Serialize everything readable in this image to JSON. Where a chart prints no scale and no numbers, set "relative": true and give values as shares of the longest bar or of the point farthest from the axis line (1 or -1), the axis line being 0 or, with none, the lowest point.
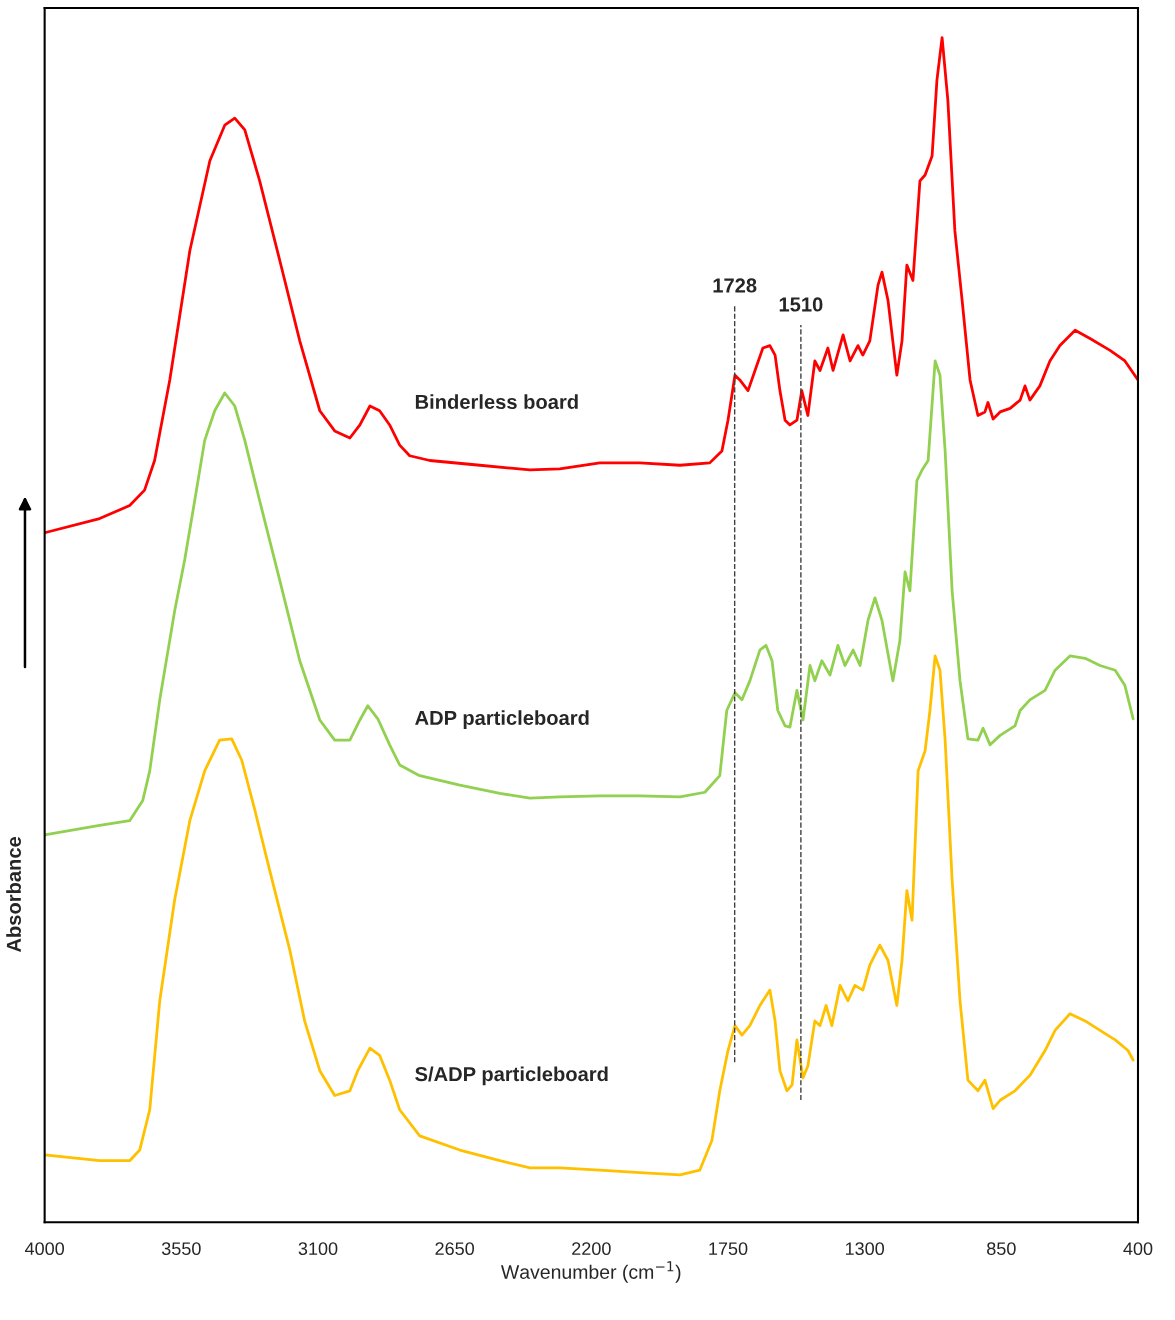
{
  "chart_data": {
    "type": "line",
    "relative": true,
    "xlabel": "Wavenumber (cm$^{−1}$)",
    "ylabel": "Absorbance",
    "xlim": [
      4000,
      400
    ],
    "xticks": [
      4000,
      3550,
      3100,
      2650,
      2200,
      1750,
      1300,
      850,
      400
    ],
    "tick_labels": "x",
    "grid": false,
    "legend": false,
    "line_style": "solid",
    "marker": "none",
    "ref_lines": [
      {
        "axis": "x",
        "value": 1728,
        "label": "1728",
        "line_style": "dashed",
        "color": "#404040"
      },
      {
        "axis": "x",
        "value": 1510,
        "label": "1510",
        "line_style": "dashed",
        "color": "#404040"
      }
    ],
    "series": [
      {
        "name": "Binderless board",
        "color": "#ff0000",
        "x": [
          4000,
          3819,
          3720,
          3671,
          3638,
          3588,
          3522,
          3456,
          3407,
          3374,
          3341,
          3292,
          3226,
          3160,
          3094,
          3045,
          2995,
          2962,
          2929,
          2897,
          2864,
          2831,
          2798,
          2732,
          2567,
          2402,
          2304,
          2172,
          2040,
          1908,
          1810,
          1770,
          1750,
          1727,
          1711,
          1684,
          1661,
          1635,
          1612,
          1595,
          1579,
          1562,
          1546,
          1523,
          1507,
          1487,
          1464,
          1447,
          1421,
          1404,
          1371,
          1348,
          1322,
          1306,
          1283,
          1256,
          1243,
          1223,
          1194,
          1177,
          1161,
          1141,
          1118,
          1101,
          1078,
          1062,
          1045,
          1026,
          1003,
          979,
          953,
          927,
          904,
          894,
          877,
          854,
          821,
          788,
          772,
          756,
          723,
          690,
          657,
          607,
          558,
          492,
          443,
          400
        ],
        "values": [
          0.582,
          0.594,
          0.605,
          0.618,
          0.643,
          0.711,
          0.82,
          0.896,
          0.926,
          0.932,
          0.922,
          0.879,
          0.812,
          0.744,
          0.685,
          0.668,
          0.662,
          0.673,
          0.689,
          0.685,
          0.673,
          0.656,
          0.647,
          0.643,
          0.639,
          0.635,
          0.636,
          0.641,
          0.641,
          0.639,
          0.641,
          0.651,
          0.677,
          0.715,
          0.711,
          0.702,
          0.719,
          0.738,
          0.74,
          0.732,
          0.702,
          0.677,
          0.673,
          0.677,
          0.702,
          0.681,
          0.727,
          0.719,
          0.738,
          0.719,
          0.749,
          0.727,
          0.74,
          0.732,
          0.744,
          0.791,
          0.802,
          0.778,
          0.715,
          0.744,
          0.808,
          0.795,
          0.879,
          0.884,
          0.9,
          0.964,
          1,
          0.947,
          0.837,
          0.778,
          0.711,
          0.681,
          0.684,
          0.692,
          0.678,
          0.684,
          0.687,
          0.694,
          0.706,
          0.694,
          0.706,
          0.727,
          0.74,
          0.753,
          0.746,
          0.736,
          0.727,
          0.711
        ]
      },
      {
        "name": "ADP particleboard",
        "color": "#92d050",
        "x": [
          4000,
          3819,
          3720,
          3677,
          3654,
          3621,
          3572,
          3539,
          3506,
          3473,
          3440,
          3407,
          3374,
          3341,
          3292,
          3226,
          3160,
          3094,
          3045,
          2995,
          2962,
          2936,
          2903,
          2864,
          2831,
          2765,
          2633,
          2501,
          2402,
          2304,
          2172,
          2040,
          1908,
          1826,
          1777,
          1754,
          1727,
          1704,
          1678,
          1645,
          1625,
          1605,
          1586,
          1562,
          1546,
          1523,
          1503,
          1480,
          1464,
          1441,
          1414,
          1388,
          1365,
          1338,
          1315,
          1289,
          1266,
          1243,
          1207,
          1184,
          1167,
          1151,
          1128,
          1111,
          1091,
          1068,
          1052,
          1035,
          1012,
          986,
          960,
          927,
          910,
          887,
          854,
          805,
          788,
          756,
          706,
          673,
          624,
          574,
          525,
          475,
          443,
          416
        ],
        "values": [
          0.327,
          0.335,
          0.339,
          0.356,
          0.381,
          0.441,
          0.516,
          0.559,
          0.609,
          0.66,
          0.685,
          0.7,
          0.689,
          0.66,
          0.609,
          0.542,
          0.474,
          0.424,
          0.407,
          0.407,
          0.424,
          0.436,
          0.425,
          0.403,
          0.386,
          0.377,
          0.369,
          0.362,
          0.358,
          0.359,
          0.36,
          0.36,
          0.359,
          0.363,
          0.377,
          0.432,
          0.447,
          0.441,
          0.457,
          0.483,
          0.487,
          0.474,
          0.432,
          0.419,
          0.418,
          0.449,
          0.424,
          0.47,
          0.457,
          0.474,
          0.462,
          0.487,
          0.47,
          0.483,
          0.47,
          0.508,
          0.527,
          0.508,
          0.457,
          0.491,
          0.549,
          0.533,
          0.626,
          0.635,
          0.643,
          0.727,
          0.715,
          0.651,
          0.533,
          0.457,
          0.408,
          0.407,
          0.417,
          0.403,
          0.411,
          0.419,
          0.432,
          0.441,
          0.449,
          0.466,
          0.478,
          0.476,
          0.47,
          0.466,
          0.453,
          0.425
        ]
      },
      {
        "name": "S/ADP particleboard",
        "color": "#ffc000",
        "x": [
          4000,
          3819,
          3720,
          3687,
          3654,
          3621,
          3572,
          3522,
          3473,
          3424,
          3384,
          3351,
          3308,
          3259,
          3193,
          3144,
          3094,
          3045,
          2995,
          2969,
          2929,
          2897,
          2864,
          2831,
          2765,
          2633,
          2501,
          2402,
          2304,
          2172,
          2040,
          1908,
          1843,
          1803,
          1777,
          1750,
          1727,
          1704,
          1678,
          1645,
          1612,
          1595,
          1579,
          1556,
          1539,
          1523,
          1503,
          1487,
          1464,
          1447,
          1427,
          1408,
          1381,
          1355,
          1332,
          1306,
          1283,
          1250,
          1223,
          1194,
          1177,
          1161,
          1144,
          1124,
          1101,
          1085,
          1068,
          1052,
          1035,
          1012,
          986,
          960,
          927,
          904,
          877,
          854,
          805,
          756,
          706,
          673,
          624,
          574,
          525,
          475,
          433,
          416
        ],
        "values": [
          0.057,
          0.052,
          0.052,
          0.061,
          0.095,
          0.187,
          0.272,
          0.339,
          0.381,
          0.407,
          0.408,
          0.39,
          0.348,
          0.297,
          0.23,
          0.17,
          0.128,
          0.107,
          0.111,
          0.128,
          0.147,
          0.141,
          0.12,
          0.095,
          0.073,
          0.061,
          0.052,
          0.046,
          0.046,
          0.044,
          0.042,
          0.04,
          0.044,
          0.069,
          0.111,
          0.145,
          0.166,
          0.158,
          0.166,
          0.183,
          0.196,
          0.17,
          0.128,
          0.111,
          0.116,
          0.154,
          0.122,
          0.132,
          0.17,
          0.166,
          0.183,
          0.166,
          0.2,
          0.187,
          0.2,
          0.196,
          0.217,
          0.234,
          0.221,
          0.183,
          0.221,
          0.28,
          0.255,
          0.381,
          0.398,
          0.432,
          0.478,
          0.466,
          0.407,
          0.289,
          0.187,
          0.12,
          0.111,
          0.12,
          0.096,
          0.103,
          0.111,
          0.124,
          0.145,
          0.162,
          0.176,
          0.17,
          0.162,
          0.154,
          0.145,
          0.137
        ]
      }
    ]
  }
}
